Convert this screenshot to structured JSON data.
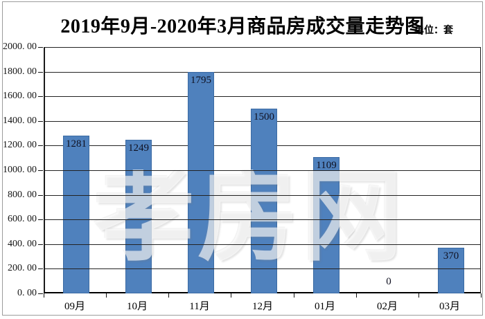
{
  "header": {
    "title": "2019年9月-2020年3月商品房成交量走势图",
    "unit_label": "单位：套"
  },
  "watermark": {
    "text": "孝房网"
  },
  "chart_data": {
    "type": "bar",
    "title": "2019年9月-2020年3月商品房成交量走势图",
    "unit_label": "单位：套",
    "categories": [
      "09月",
      "10月",
      "11月",
      "12月",
      "01月",
      "02月",
      "03月"
    ],
    "values": [
      1281,
      1249,
      1795,
      1500,
      1109,
      0,
      370
    ],
    "data_labels": [
      "1281",
      "1249",
      "1795",
      "1500",
      "1109",
      "0",
      "370"
    ],
    "xlabel": "",
    "ylabel": "",
    "ylim": [
      0,
      2000
    ],
    "ytick_step": 200,
    "ytick_labels": [
      "0. 00",
      "200. 00",
      "400. 00",
      "600. 00",
      "800. 00",
      "1000. 00",
      "1200. 00",
      "1400. 00",
      "1600. 00",
      "1800. 00",
      "2000. 00"
    ],
    "grid": "on",
    "legend": "none",
    "bar_color": "#4f81bd",
    "bar_border_color": "#3a6aa3",
    "label_position": "inside-end",
    "watermark_text": "孝房网"
  }
}
